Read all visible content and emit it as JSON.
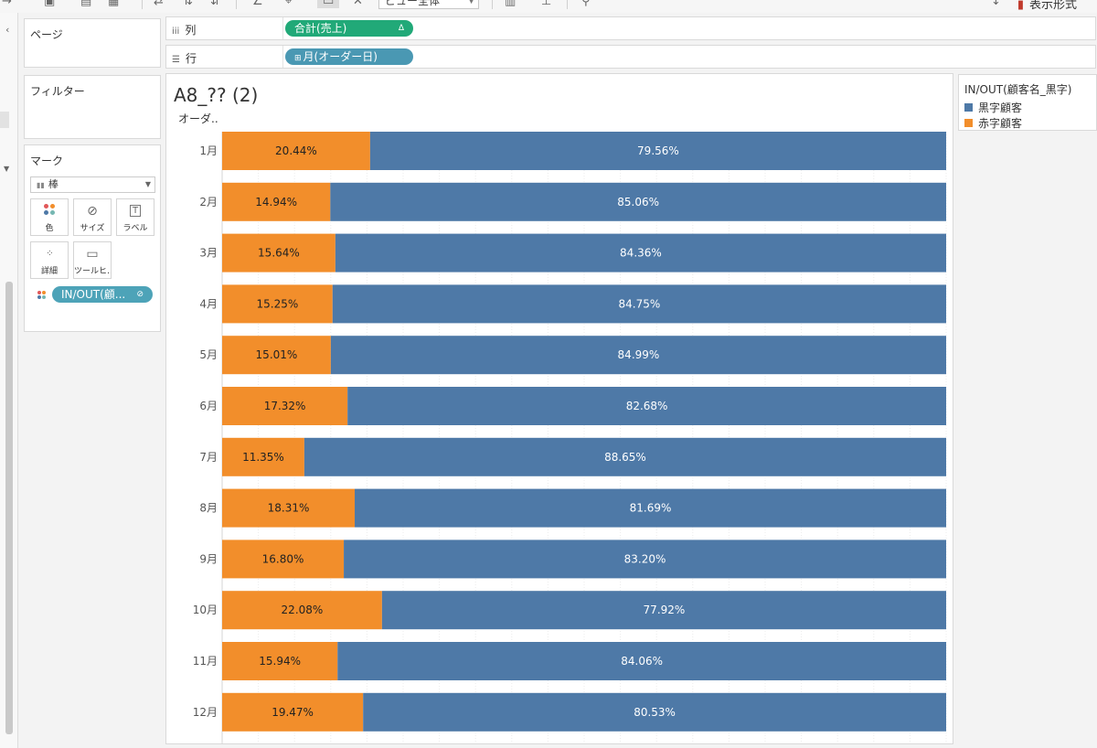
{
  "toolbar": {
    "view_dropdown": "ビュー全体",
    "show_me_label": "表示形式"
  },
  "left_panel": {
    "pages_title": "ページ",
    "filters_title": "フィルター",
    "marks_title": "マーク",
    "mark_type": "棒",
    "mark_buttons": [
      {
        "label": "色",
        "icon": "color-dots-icon"
      },
      {
        "label": "サイズ",
        "icon": "size-icon"
      },
      {
        "label": "ラベル",
        "icon": "label-t-icon"
      },
      {
        "label": "詳細",
        "icon": "detail-dots-icon"
      },
      {
        "label": "ツールヒ…",
        "icon": "tooltip-icon"
      }
    ],
    "mark_pill": "IN/OUT(顧..."
  },
  "shelves": {
    "columns_label": "列",
    "columns_pill": "合計(売上)",
    "columns_pill_icon": "Δ",
    "rows_label": "行",
    "rows_pill": "月(オーダー日)"
  },
  "view": {
    "title": "A8_?? (2)",
    "row_header": "オーダ.."
  },
  "legend": {
    "title": "IN/OUT(顧客名_黒字)",
    "items": [
      {
        "label": "黒字顧客",
        "color": "#4e79a7"
      },
      {
        "label": "赤字顧客",
        "color": "#f28e2b"
      }
    ]
  },
  "chart_data": {
    "type": "bar",
    "orientation": "horizontal",
    "stacked": "percent",
    "categories": [
      "1月",
      "2月",
      "3月",
      "4月",
      "5月",
      "6月",
      "7月",
      "8月",
      "9月",
      "10月",
      "11月",
      "12月"
    ],
    "series": [
      {
        "name": "赤字顧客",
        "color": "#f28e2b",
        "values": [
          20.44,
          14.94,
          15.64,
          15.25,
          15.01,
          17.32,
          11.35,
          18.31,
          16.8,
          22.08,
          15.94,
          19.47
        ]
      },
      {
        "name": "黒字顧客",
        "color": "#4e79a7",
        "values": [
          79.56,
          85.06,
          84.36,
          84.75,
          84.99,
          82.68,
          88.65,
          81.69,
          83.2,
          77.92,
          84.06,
          80.53
        ]
      }
    ],
    "value_labels": {
      "赤字顧客": [
        "20.44%",
        "14.94%",
        "15.64%",
        "15.25%",
        "15.01%",
        "17.32%",
        "11.35%",
        "18.31%",
        "16.80%",
        "22.08%",
        "15.94%",
        "19.47%"
      ],
      "黒字顧客": [
        "79.56%",
        "85.06%",
        "84.36%",
        "84.75%",
        "84.99%",
        "82.68%",
        "88.65%",
        "81.69%",
        "83.20%",
        "77.92%",
        "84.06%",
        "80.53%"
      ]
    },
    "xlim": [
      0,
      100
    ],
    "grid": true,
    "label_colors": {
      "赤字顧客": "#222222",
      "黒字顧客": "#ffffff"
    }
  }
}
